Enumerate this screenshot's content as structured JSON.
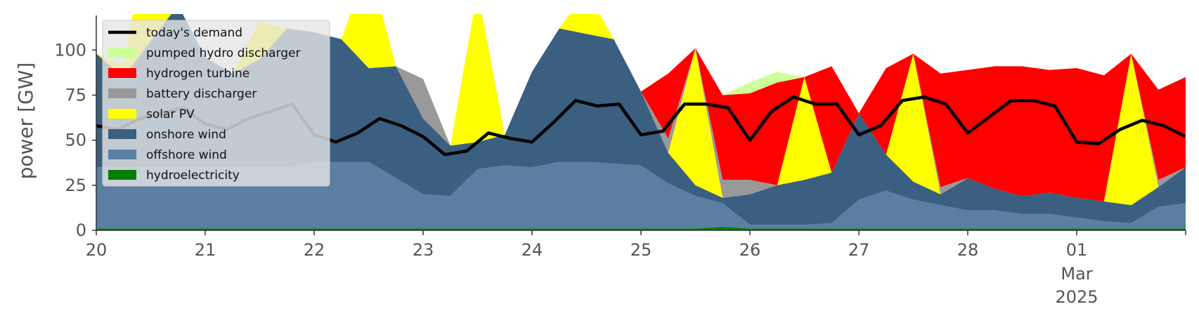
{
  "chart_data": {
    "type": "area",
    "title": "",
    "ylabel": "power [GW]",
    "xlabel": "",
    "ylim": [
      0,
      120
    ],
    "yticks": [
      0,
      25,
      50,
      75,
      100
    ],
    "xlim": [
      0,
      10
    ],
    "x_ticks": [
      {
        "x": 0,
        "label": "20"
      },
      {
        "x": 1,
        "label": "21"
      },
      {
        "x": 2,
        "label": "22"
      },
      {
        "x": 3,
        "label": "23"
      },
      {
        "x": 4,
        "label": "24"
      },
      {
        "x": 5,
        "label": "25"
      },
      {
        "x": 6,
        "label": "26"
      },
      {
        "x": 7,
        "label": "27"
      },
      {
        "x": 8,
        "label": "28"
      },
      {
        "x": 9,
        "label": "01",
        "extra": [
          "Mar",
          "2025"
        ]
      }
    ],
    "x_unit": "days from 20 Feb 2025",
    "x": [
      0,
      0.25,
      0.5,
      0.75,
      1,
      1.25,
      1.5,
      1.75,
      2,
      2.25,
      2.5,
      2.75,
      3,
      3.25,
      3.5,
      3.75,
      4,
      4.25,
      4.5,
      4.75,
      5,
      5.25,
      5.5,
      5.75,
      6,
      6.25,
      6.5,
      6.75,
      7,
      7.25,
      7.5,
      7.75,
      8,
      8.25,
      8.5,
      8.75,
      9,
      9.25,
      9.5,
      9.75,
      10
    ],
    "series": [
      {
        "name": "hydroelectricity",
        "color": "#008000",
        "values": [
          1,
          1,
          1,
          1,
          1,
          1,
          1,
          1,
          1,
          1,
          1,
          1,
          1,
          1,
          1,
          1,
          1,
          1,
          1,
          1,
          1,
          1,
          1,
          2,
          1,
          1,
          1,
          1,
          1,
          1,
          1,
          1,
          1,
          1,
          1,
          1,
          1,
          1,
          1,
          1,
          1
        ]
      },
      {
        "name": "offshore wind",
        "color": "#5b7fa3",
        "values": [
          34,
          34,
          34,
          34,
          34,
          34,
          34,
          34,
          37,
          37,
          37,
          28,
          19,
          18,
          33,
          35,
          34,
          37,
          37,
          36,
          35,
          25,
          18,
          13,
          2,
          2,
          2,
          3,
          16,
          21,
          16,
          13,
          10,
          10,
          8,
          8,
          6,
          4,
          3,
          12,
          14
        ]
      },
      {
        "name": "onshore wind",
        "color": "#3a5f81",
        "values": [
          63,
          50,
          70,
          90,
          61,
          52,
          60,
          77,
          72,
          68,
          52,
          62,
          42,
          28,
          15,
          17,
          53,
          74,
          71,
          69,
          41,
          17,
          6,
          3,
          17,
          22,
          25,
          28,
          48,
          20,
          10,
          6,
          18,
          12,
          10,
          12,
          11,
          11,
          10,
          11,
          20
        ]
      },
      {
        "name": "solar PV",
        "color": "#ffff00",
        "values": [
          0,
          6,
          70,
          0,
          0,
          0,
          21,
          0,
          0,
          0,
          58,
          0,
          0,
          0,
          84,
          0,
          0,
          0,
          24,
          0,
          0,
          0,
          76,
          0,
          0,
          0,
          57,
          0,
          0,
          0,
          71,
          0,
          0,
          0,
          0,
          0,
          0,
          0,
          84,
          0,
          0
        ]
      },
      {
        "name": "battery discharger",
        "color": "#999999",
        "values": [
          0,
          0,
          0,
          0,
          0,
          0,
          0,
          0,
          0,
          0,
          0,
          0,
          22,
          0,
          0,
          0,
          0,
          0,
          0,
          0,
          0,
          8,
          0,
          10,
          8,
          0,
          0,
          0,
          0,
          0,
          0,
          4,
          0,
          0,
          0,
          0,
          0,
          0,
          0,
          4,
          0
        ]
      },
      {
        "name": "hydrogen turbine",
        "color": "#ff0000",
        "values": [
          0,
          0,
          0,
          0,
          0,
          0,
          0,
          0,
          0,
          0,
          0,
          0,
          0,
          0,
          0,
          0,
          0,
          0,
          0,
          0,
          0,
          36,
          0,
          47,
          48,
          57,
          0,
          59,
          0,
          48,
          0,
          63,
          60,
          68,
          72,
          68,
          72,
          70,
          0,
          50,
          50
        ]
      },
      {
        "name": "pumped hydro discharger",
        "color": "#ccff99",
        "values": [
          0,
          0,
          0,
          0,
          0,
          0,
          0,
          0,
          0,
          0,
          0,
          0,
          0,
          0,
          0,
          0,
          0,
          0,
          0,
          0,
          0,
          0,
          0,
          0,
          6,
          6,
          0,
          0,
          0,
          0,
          0,
          0,
          0,
          0,
          0,
          0,
          0,
          0,
          0,
          0,
          0
        ]
      }
    ],
    "demand": {
      "name": "today's demand",
      "color": "#000000",
      "x": [
        0,
        0.2,
        0.4,
        0.6,
        0.8,
        1,
        1.2,
        1.4,
        1.6,
        1.8,
        2,
        2.2,
        2.4,
        2.6,
        2.8,
        3,
        3.2,
        3.4,
        3.6,
        3.8,
        4,
        4.2,
        4.4,
        4.6,
        4.8,
        5,
        5.2,
        5.4,
        5.6,
        5.8,
        6,
        6.2,
        6.4,
        6.6,
        6.8,
        7,
        7.2,
        7.4,
        7.6,
        7.8,
        8,
        8.2,
        8.4,
        8.6,
        8.8,
        9,
        9.2,
        9.4,
        9.6,
        9.8,
        10
      ],
      "values": [
        58,
        56,
        62,
        65,
        68,
        59,
        56,
        62,
        66,
        70,
        53,
        49,
        54,
        62,
        58,
        52,
        42,
        44,
        54,
        51,
        49,
        60,
        72,
        69,
        70,
        53,
        55,
        70,
        70,
        68,
        50,
        66,
        74,
        70,
        70,
        53,
        58,
        72,
        74,
        70,
        54,
        63,
        72,
        72,
        69,
        49,
        48,
        56,
        61,
        58,
        52
      ]
    },
    "legend": {
      "placement": "upper-left",
      "entries": [
        "today's demand",
        "pumped hydro discharger",
        "hydrogen turbine",
        "battery discharger",
        "solar PV",
        "onshore wind",
        "offshore wind",
        "hydroelectricity"
      ]
    }
  }
}
